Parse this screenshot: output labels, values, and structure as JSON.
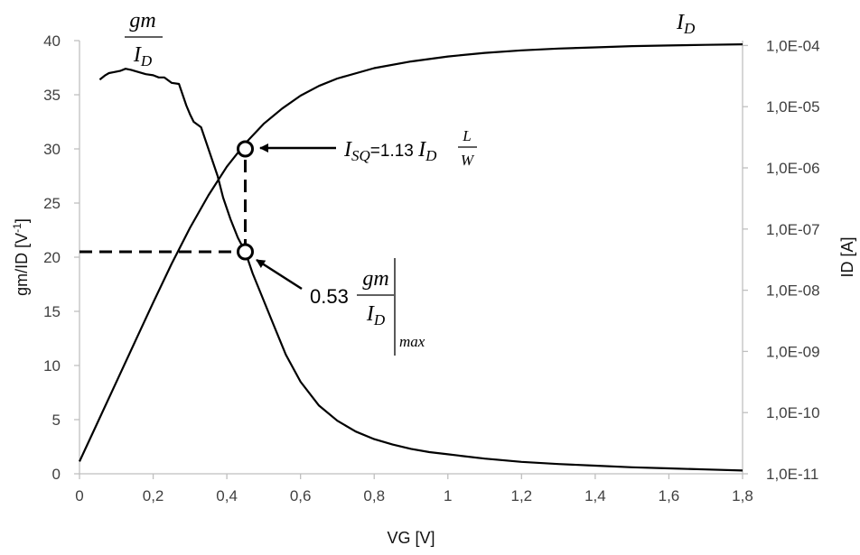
{
  "chart_data": {
    "type": "line",
    "xlabel": "VG [V]",
    "ylabel": "gm/ID [V",
    "ylabel_sup": "-1",
    "ylabel_close": "]",
    "y2label": "ID [A]",
    "xlim": [
      0,
      1.8
    ],
    "ylim": [
      0,
      40
    ],
    "y2lim_log10": [
      -11,
      -3.92
    ],
    "x_ticks": [
      "0",
      "0,2",
      "0,4",
      "0,6",
      "0,8",
      "1",
      "1,2",
      "1,4",
      "1,6",
      "1,8"
    ],
    "x_tick_values": [
      0,
      0.2,
      0.4,
      0.6,
      0.8,
      1.0,
      1.2,
      1.4,
      1.6,
      1.8
    ],
    "y_ticks": [
      "0",
      "5",
      "10",
      "15",
      "20",
      "25",
      "30",
      "35",
      "40"
    ],
    "y_tick_values": [
      0,
      5,
      10,
      15,
      20,
      25,
      30,
      35,
      40
    ],
    "y2_ticks": [
      "1,0E-11",
      "1,0E-10",
      "1,0E-09",
      "1,0E-08",
      "1,0E-07",
      "1,0E-06",
      "1,0E-05",
      "1,0E-04"
    ],
    "y2_tick_exponents": [
      -11,
      -10,
      -9,
      -8,
      -7,
      -6,
      -5,
      -4
    ],
    "series": [
      {
        "axis": "left",
        "x": [
          0.055,
          0.07,
          0.08,
          0.095,
          0.11,
          0.125,
          0.14,
          0.16,
          0.18,
          0.2,
          0.215,
          0.23,
          0.25,
          0.27,
          0.29,
          0.3,
          0.31,
          0.33,
          0.345,
          0.36,
          0.375,
          0.39,
          0.41,
          0.43,
          0.45,
          0.47,
          0.5,
          0.53,
          0.56,
          0.6,
          0.65,
          0.7,
          0.75,
          0.8,
          0.85,
          0.9,
          0.95,
          1.0,
          1.1,
          1.2,
          1.3,
          1.4,
          1.5,
          1.6,
          1.7,
          1.8
        ],
        "y": [
          36.4,
          36.8,
          37.0,
          37.1,
          37.2,
          37.4,
          37.3,
          37.1,
          36.9,
          36.8,
          36.6,
          36.6,
          36.1,
          36.0,
          34.0,
          33.2,
          32.5,
          32.0,
          30.5,
          29.0,
          27.5,
          25.5,
          23.5,
          21.8,
          20.5,
          18.5,
          16.0,
          13.5,
          11.0,
          8.5,
          6.3,
          4.9,
          3.9,
          3.2,
          2.7,
          2.3,
          2.0,
          1.8,
          1.4,
          1.1,
          0.9,
          0.75,
          0.6,
          0.5,
          0.4,
          0.3
        ]
      },
      {
        "axis": "right",
        "x": [
          0.0,
          0.05,
          0.1,
          0.15,
          0.2,
          0.25,
          0.3,
          0.35,
          0.4,
          0.45,
          0.5,
          0.55,
          0.6,
          0.65,
          0.7,
          0.8,
          0.9,
          1.0,
          1.1,
          1.2,
          1.3,
          1.4,
          1.5,
          1.6,
          1.7,
          1.8
        ],
        "log10_y": [
          -10.8,
          -10.15,
          -9.5,
          -8.85,
          -8.2,
          -7.57,
          -6.98,
          -6.45,
          -5.98,
          -5.6,
          -5.28,
          -5.03,
          -4.82,
          -4.66,
          -4.54,
          -4.37,
          -4.26,
          -4.18,
          -4.12,
          -4.08,
          -4.05,
          -4.03,
          -4.01,
          -4.0,
          -3.99,
          -3.98
        ]
      }
    ],
    "dashed_guides": [
      {
        "x": [
          0,
          0.45
        ],
        "y": [
          20.5,
          20.5
        ]
      },
      {
        "x": [
          0.45,
          0.45
        ],
        "y": [
          20.5,
          30.0
        ]
      }
    ],
    "markers": [
      {
        "x": 0.45,
        "y": 30.0
      },
      {
        "x": 0.45,
        "y": 20.5
      }
    ],
    "annotations": {
      "gm_num": "gm",
      "gm_den": "I",
      "gm_den_sub": "D",
      "id_label": "I",
      "id_label_sub": "D",
      "isq_I": "I",
      "isq_sub": "SQ",
      "isq_eq": "=1.13 ",
      "isq_I2": "I",
      "isq_sub2": "D",
      "isq_L": "L",
      "isq_W": "W",
      "k_coef": "0.53",
      "k_num": "gm",
      "k_den": "I",
      "k_den_sub": "D",
      "k_max": "max"
    }
  }
}
